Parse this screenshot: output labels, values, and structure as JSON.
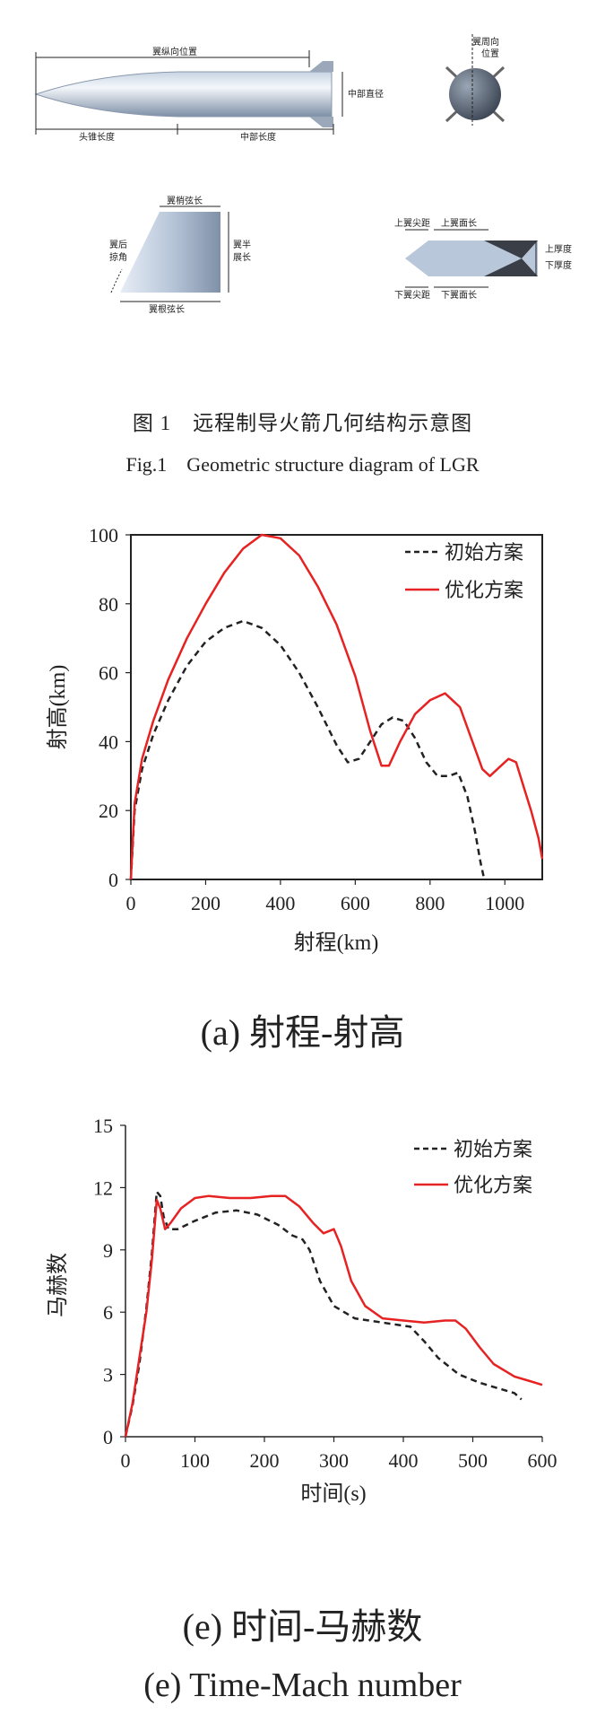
{
  "figure1": {
    "caption_cn": "图 1　远程制导火箭几何结构示意图",
    "caption_en": "Fig.1　Geometric structure diagram of LGR",
    "labels": {
      "wing_long_pos": "翼纵向位置",
      "mid_diameter": "中部直径",
      "head_length": "头锥长度",
      "mid_length": "中部长度",
      "wing_circ_pos_1": "翼周向",
      "wing_circ_pos_2": "位置",
      "wing_tip_chord": "翼梢弦长",
      "sweep_1": "翼后",
      "sweep_2": "掠角",
      "half_span_1": "翼半",
      "half_span_2": "展长",
      "root_chord": "翼根弦长",
      "upper_tip_dist": "上翼尖距",
      "upper_face_len": "上翼面长",
      "upper_thick": "上厚度",
      "lower_thick": "下厚度",
      "lower_tip_dist": "下翼尖距",
      "lower_face_len": "下翼面长"
    }
  },
  "charts": {
    "a": {
      "caption": "(a) 射程-射高",
      "xlabel": "射程(km)",
      "ylabel": "射高(km)",
      "legend": [
        "初始方案",
        "优化方案"
      ]
    },
    "e": {
      "caption1": "(e) 时间-马赫数",
      "caption2": "(e) Time-Mach number",
      "xlabel": "时间(s)",
      "ylabel": "马赫数",
      "legend": [
        "初始方案",
        "优化方案"
      ]
    }
  },
  "chart_data": [
    {
      "type": "line",
      "xlim": [
        0,
        1100
      ],
      "ylim": [
        0,
        100
      ],
      "xticks": [
        0,
        200,
        400,
        600,
        800,
        1000
      ],
      "yticks": [
        0,
        20,
        40,
        60,
        80,
        100
      ],
      "xlabel": "射程(km)",
      "ylabel": "射高(km)",
      "legend_position": "top-right",
      "series": [
        {
          "name": "初始方案",
          "color": "#222222",
          "dash": true,
          "points": [
            [
              0,
              0
            ],
            [
              10,
              20
            ],
            [
              30,
              32
            ],
            [
              60,
              42
            ],
            [
              100,
              52
            ],
            [
              150,
              62
            ],
            [
              200,
              69
            ],
            [
              250,
              73
            ],
            [
              300,
              75
            ],
            [
              350,
              73
            ],
            [
              400,
              68
            ],
            [
              450,
              60
            ],
            [
              500,
              50
            ],
            [
              550,
              39
            ],
            [
              580,
              34
            ],
            [
              610,
              35
            ],
            [
              640,
              40
            ],
            [
              670,
              45
            ],
            [
              700,
              47
            ],
            [
              730,
              46
            ],
            [
              760,
              41
            ],
            [
              790,
              34
            ],
            [
              820,
              30
            ],
            [
              850,
              30
            ],
            [
              875,
              31
            ],
            [
              900,
              24
            ],
            [
              920,
              14
            ],
            [
              935,
              5
            ],
            [
              945,
              0
            ]
          ]
        },
        {
          "name": "优化方案",
          "color": "#e62222",
          "dash": false,
          "points": [
            [
              0,
              0
            ],
            [
              10,
              22
            ],
            [
              30,
              35
            ],
            [
              60,
              46
            ],
            [
              100,
              58
            ],
            [
              150,
              70
            ],
            [
              200,
              80
            ],
            [
              250,
              89
            ],
            [
              300,
              96
            ],
            [
              350,
              100
            ],
            [
              400,
              99
            ],
            [
              450,
              94
            ],
            [
              500,
              85
            ],
            [
              550,
              74
            ],
            [
              600,
              59
            ],
            [
              640,
              43
            ],
            [
              670,
              33
            ],
            [
              690,
              33
            ],
            [
              720,
              40
            ],
            [
              760,
              48
            ],
            [
              800,
              52
            ],
            [
              840,
              54
            ],
            [
              880,
              50
            ],
            [
              910,
              41
            ],
            [
              940,
              32
            ],
            [
              960,
              30
            ],
            [
              980,
              32
            ],
            [
              1010,
              35
            ],
            [
              1030,
              34
            ],
            [
              1050,
              27
            ],
            [
              1070,
              20
            ],
            [
              1090,
              12
            ],
            [
              1100,
              6
            ]
          ]
        }
      ]
    },
    {
      "type": "line",
      "xlim": [
        0,
        600
      ],
      "ylim": [
        0,
        15
      ],
      "xticks": [
        0,
        100,
        200,
        300,
        400,
        500,
        600
      ],
      "yticks": [
        0,
        3,
        6,
        9,
        12,
        15
      ],
      "xlabel": "时间(s)",
      "ylabel": "马赫数",
      "legend_position": "top-right",
      "series": [
        {
          "name": "初始方案",
          "color": "#222222",
          "dash": true,
          "points": [
            [
              0,
              0
            ],
            [
              10,
              1.5
            ],
            [
              20,
              3.5
            ],
            [
              30,
              6.2
            ],
            [
              38,
              8.8
            ],
            [
              45,
              11.8
            ],
            [
              50,
              11.6
            ],
            [
              55,
              10.6
            ],
            [
              62,
              10.0
            ],
            [
              75,
              10.0
            ],
            [
              100,
              10.4
            ],
            [
              130,
              10.8
            ],
            [
              160,
              10.9
            ],
            [
              190,
              10.7
            ],
            [
              220,
              10.2
            ],
            [
              240,
              9.7
            ],
            [
              255,
              9.5
            ],
            [
              265,
              9.0
            ],
            [
              280,
              7.5
            ],
            [
              300,
              6.3
            ],
            [
              330,
              5.7
            ],
            [
              370,
              5.5
            ],
            [
              410,
              5.3
            ],
            [
              430,
              4.6
            ],
            [
              450,
              3.8
            ],
            [
              480,
              3.0
            ],
            [
              510,
              2.6
            ],
            [
              540,
              2.3
            ],
            [
              560,
              2.1
            ],
            [
              570,
              1.8
            ]
          ]
        },
        {
          "name": "优化方案",
          "color": "#e62222",
          "dash": false,
          "points": [
            [
              0,
              0
            ],
            [
              10,
              1.6
            ],
            [
              20,
              3.8
            ],
            [
              30,
              6.0
            ],
            [
              38,
              8.5
            ],
            [
              45,
              11.4
            ],
            [
              50,
              11.0
            ],
            [
              57,
              10.0
            ],
            [
              65,
              10.3
            ],
            [
              80,
              11.0
            ],
            [
              100,
              11.5
            ],
            [
              120,
              11.6
            ],
            [
              150,
              11.5
            ],
            [
              180,
              11.5
            ],
            [
              210,
              11.6
            ],
            [
              230,
              11.6
            ],
            [
              250,
              11.1
            ],
            [
              270,
              10.3
            ],
            [
              285,
              9.8
            ],
            [
              300,
              10.0
            ],
            [
              310,
              9.2
            ],
            [
              325,
              7.5
            ],
            [
              345,
              6.3
            ],
            [
              370,
              5.7
            ],
            [
              400,
              5.6
            ],
            [
              430,
              5.5
            ],
            [
              460,
              5.6
            ],
            [
              475,
              5.6
            ],
            [
              490,
              5.2
            ],
            [
              510,
              4.3
            ],
            [
              530,
              3.5
            ],
            [
              560,
              2.9
            ],
            [
              580,
              2.7
            ],
            [
              600,
              2.5
            ]
          ]
        }
      ]
    }
  ]
}
